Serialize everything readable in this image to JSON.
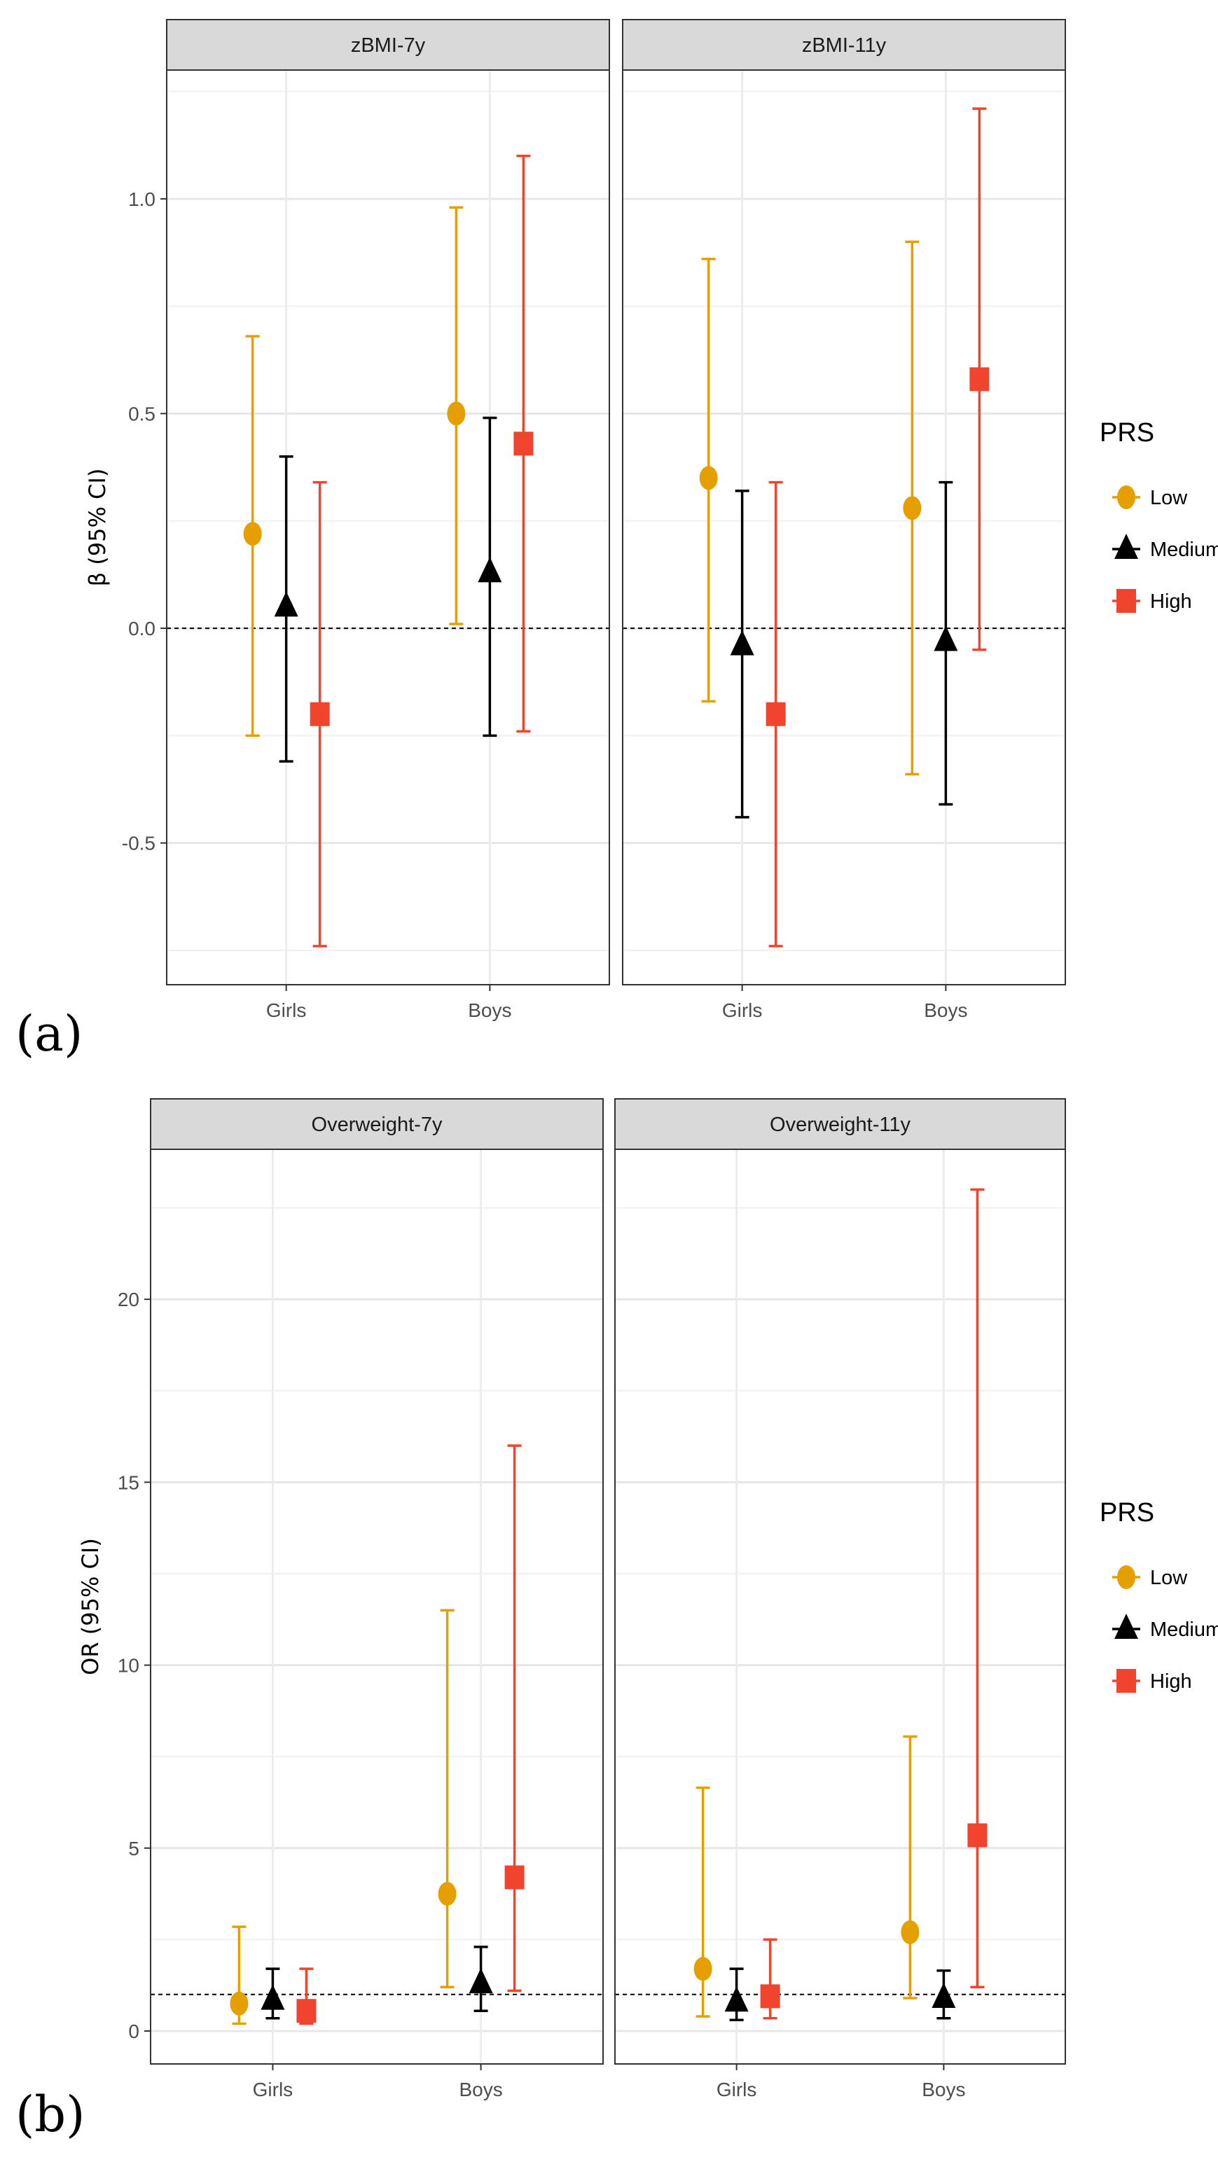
{
  "colors": {
    "Low": "#E69F00",
    "Medium": "#000000",
    "High": "#F0442E"
  },
  "chart_data": [
    {
      "type": "scatter",
      "label": "(a)",
      "ylabel": "β (95% CI)",
      "yticks": [
        -0.5,
        0.0,
        0.5,
        1.0
      ],
      "ytick_labels": [
        "-0.5",
        "0.0",
        "0.5",
        "1.0"
      ],
      "ylim": [
        -0.83,
        1.3
      ],
      "reference_line": 0,
      "categories": [
        "Girls",
        "Boys"
      ],
      "legend": {
        "title": "PRS",
        "entries": [
          "Low",
          "Medium",
          "High"
        ]
      },
      "facets": [
        {
          "title": "zBMI-7y",
          "series": [
            {
              "name": "Low",
              "shape": "circle",
              "values": [
                0.22,
                0.5
              ],
              "lower": [
                -0.25,
                0.01
              ],
              "upper": [
                0.68,
                0.98
              ]
            },
            {
              "name": "Medium",
              "shape": "triangle",
              "values": [
                0.05,
                0.13
              ],
              "lower": [
                -0.31,
                -0.25
              ],
              "upper": [
                0.4,
                0.49
              ]
            },
            {
              "name": "High",
              "shape": "square",
              "values": [
                -0.2,
                0.43
              ],
              "lower": [
                -0.74,
                -0.24
              ],
              "upper": [
                0.34,
                1.1
              ]
            }
          ]
        },
        {
          "title": "zBMI-11y",
          "series": [
            {
              "name": "Low",
              "shape": "circle",
              "values": [
                0.35,
                0.28
              ],
              "lower": [
                -0.17,
                -0.34
              ],
              "upper": [
                0.86,
                0.9
              ]
            },
            {
              "name": "Medium",
              "shape": "triangle",
              "values": [
                -0.04,
                -0.03
              ],
              "lower": [
                -0.44,
                -0.41
              ],
              "upper": [
                0.32,
                0.34
              ]
            },
            {
              "name": "High",
              "shape": "square",
              "values": [
                -0.2,
                0.58
              ],
              "lower": [
                -0.74,
                -0.05
              ],
              "upper": [
                0.34,
                1.21
              ]
            }
          ]
        }
      ]
    },
    {
      "type": "scatter",
      "label": "(b)",
      "ylabel": "OR (95% CI)",
      "yticks": [
        0,
        5,
        10,
        15,
        20
      ],
      "ytick_labels": [
        "0",
        "5",
        "10",
        "15",
        "20"
      ],
      "ylim": [
        -0.9,
        24.1
      ],
      "reference_line": 1,
      "categories": [
        "Girls",
        "Boys"
      ],
      "legend": {
        "title": "PRS",
        "entries": [
          "Low",
          "Medium",
          "High"
        ]
      },
      "facets": [
        {
          "title": "Overweight-7y",
          "series": [
            {
              "name": "Low",
              "shape": "circle",
              "values": [
                0.75,
                3.75
              ],
              "lower": [
                0.2,
                1.2
              ],
              "upper": [
                2.85,
                11.5
              ]
            },
            {
              "name": "Medium",
              "shape": "triangle",
              "values": [
                0.85,
                1.3
              ],
              "lower": [
                0.35,
                0.55
              ],
              "upper": [
                1.7,
                2.3
              ]
            },
            {
              "name": "High",
              "shape": "square",
              "values": [
                0.55,
                4.2
              ],
              "lower": [
                0.2,
                1.1
              ],
              "upper": [
                1.7,
                16.0
              ]
            }
          ]
        },
        {
          "title": "Overweight-11y",
          "series": [
            {
              "name": "Low",
              "shape": "circle",
              "values": [
                1.7,
                2.7
              ],
              "lower": [
                0.4,
                0.9
              ],
              "upper": [
                6.65,
                8.05
              ]
            },
            {
              "name": "Medium",
              "shape": "triangle",
              "values": [
                0.8,
                0.9
              ],
              "lower": [
                0.3,
                0.35
              ],
              "upper": [
                1.7,
                1.65
              ]
            },
            {
              "name": "High",
              "shape": "square",
              "values": [
                0.95,
                5.35
              ],
              "lower": [
                0.35,
                1.2
              ],
              "upper": [
                2.5,
                23.0
              ]
            }
          ]
        }
      ]
    }
  ]
}
